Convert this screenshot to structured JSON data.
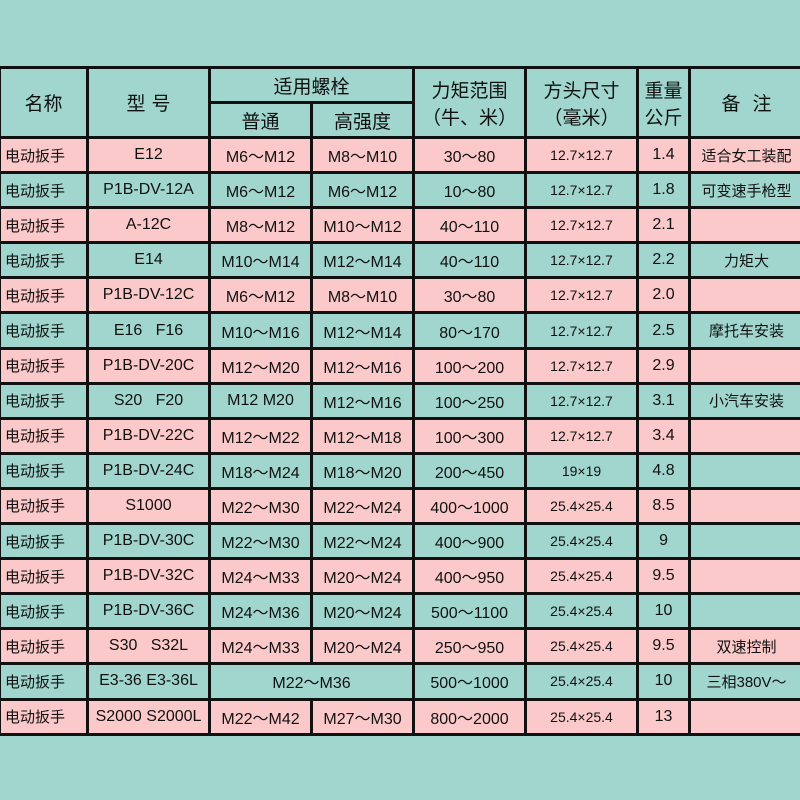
{
  "header": {
    "name": "名称",
    "model": "型 号",
    "bolt": "适用螺栓",
    "bolt_normal": "普通",
    "bolt_high": "高强度",
    "torque_1": "力矩范围",
    "torque_2": "（牛、米）",
    "square_1": "方头尺寸",
    "square_2": "（毫米）",
    "weight_1": "重量",
    "weight_2": "公斤",
    "remark": "备  注"
  },
  "colors": {
    "pink": "#fbc9c9",
    "teal": "#a0d6cd"
  },
  "rows": [
    {
      "name": "电动扳手",
      "model": "E12",
      "normal": "M6～M12",
      "high": "M8～M10",
      "torque": "30～80",
      "square": "12.7×12.7",
      "weight": "1.4",
      "remark": "适合女工装配",
      "color": "pink"
    },
    {
      "name": "电动扳手",
      "model": "P1B-DV-12A",
      "normal": "M6～M12",
      "high": "M6～M12",
      "torque": "10～80",
      "square": "12.7×12.7",
      "weight": "1.8",
      "remark": "可变速手枪型",
      "color": "teal"
    },
    {
      "name": "电动扳手",
      "model": "A-12C",
      "normal": "M8～M12",
      "high": "M10～M12",
      "torque": "40～110",
      "square": "12.7×12.7",
      "weight": "2.1",
      "remark": "",
      "color": "pink"
    },
    {
      "name": "电动扳手",
      "model": "E14",
      "normal": "M10～M14",
      "high": "M12～M14",
      "torque": "40～110",
      "square": "12.7×12.7",
      "weight": "2.2",
      "remark": "力矩大",
      "color": "teal"
    },
    {
      "name": "电动扳手",
      "model": "P1B-DV-12C",
      "normal": "M6～M12",
      "high": "M8～M10",
      "torque": "30～80",
      "square": "12.7×12.7",
      "weight": "2.0",
      "remark": "",
      "color": "pink"
    },
    {
      "name": "电动扳手",
      "model": "E16   F16",
      "normal": "M10～M16",
      "high": "M12～M14",
      "torque": "80～170",
      "square": "12.7×12.7",
      "weight": "2.5",
      "remark": "摩托车安装",
      "color": "teal"
    },
    {
      "name": "电动扳手",
      "model": "P1B-DV-20C",
      "normal": "M12～M20",
      "high": "M12～M16",
      "torque": "100～200",
      "square": "12.7×12.7",
      "weight": "2.9",
      "remark": "",
      "color": "pink"
    },
    {
      "name": "电动扳手",
      "model": "S20   F20",
      "normal": "M12  M20",
      "high": "M12～M16",
      "torque": "100～250",
      "square": "12.7×12.7",
      "weight": "3.1",
      "remark": "小汽车安装",
      "color": "teal"
    },
    {
      "name": "电动扳手",
      "model": "P1B-DV-22C",
      "normal": "M12～M22",
      "high": "M12～M18",
      "torque": "100～300",
      "square": "12.7×12.7",
      "weight": "3.4",
      "remark": "",
      "color": "pink"
    },
    {
      "name": "电动扳手",
      "model": "P1B-DV-24C",
      "normal": "M18～M24",
      "high": "M18～M20",
      "torque": "200～450",
      "square": "19×19",
      "weight": "4.8",
      "remark": "",
      "color": "teal"
    },
    {
      "name": "电动扳手",
      "model": "S1000",
      "normal": "M22～M30",
      "high": "M22～M24",
      "torque": "400～1000",
      "square": "25.4×25.4",
      "weight": "8.5",
      "remark": "",
      "color": "pink"
    },
    {
      "name": "电动扳手",
      "model": "P1B-DV-30C",
      "normal": "M22～M30",
      "high": "M22～M24",
      "torque": "400～900",
      "square": "25.4×25.4",
      "weight": "9",
      "remark": "",
      "color": "teal"
    },
    {
      "name": "电动扳手",
      "model": "P1B-DV-32C",
      "normal": "M24～M33",
      "high": "M20～M24",
      "torque": "400～950",
      "square": "25.4×25.4",
      "weight": "9.5",
      "remark": "",
      "color": "pink"
    },
    {
      "name": "电动扳手",
      "model": "P1B-DV-36C",
      "normal": "M24～M36",
      "high": "M20～M24",
      "torque": "500～1100",
      "square": "25.4×25.4",
      "weight": "10",
      "remark": "",
      "color": "teal"
    },
    {
      "name": "电动扳手",
      "model": "S30   S32L",
      "normal": "M24～M33",
      "high": "M20～M24",
      "torque": "250～950",
      "square": "25.4×25.4",
      "weight": "9.5",
      "remark": "双速控制",
      "color": "pink"
    },
    {
      "name": "电动扳手",
      "model": "E3-36 E3-36L",
      "bolt_merged": "M22～M36",
      "torque": "500～1000",
      "square": "25.4×25.4",
      "weight": "10",
      "remark": "三相380V～",
      "color": "teal"
    },
    {
      "name": "电动扳手",
      "model": "S2000 S2000L",
      "normal": "M22～M42",
      "high": "M27～M30",
      "torque": "800～2000",
      "square": "25.4×25.4",
      "weight": "13",
      "remark": "",
      "color": "pink"
    }
  ]
}
